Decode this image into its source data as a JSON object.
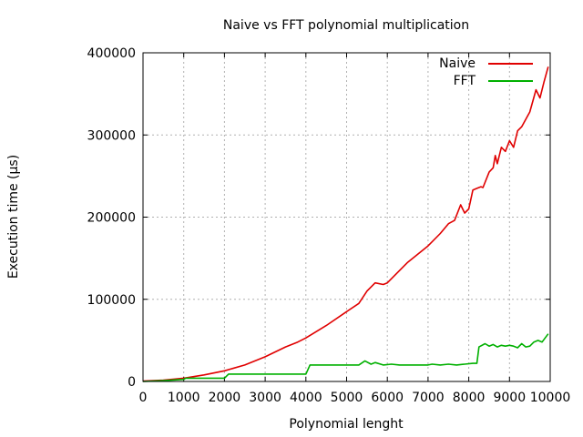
{
  "chart_data": {
    "type": "line",
    "title": "Naive vs FFT polynomial multiplication",
    "xlabel": "Polynomial lenght",
    "ylabel": "Execution time (µs)",
    "xlim": [
      0,
      10000
    ],
    "ylim": [
      0,
      400000
    ],
    "x_ticks": [
      0,
      1000,
      2000,
      3000,
      4000,
      5000,
      6000,
      7000,
      8000,
      9000,
      10000
    ],
    "x_tick_labels": [
      "0",
      "1000",
      "2000",
      "3000",
      "4000",
      "5000",
      "6000",
      "7000",
      "8000",
      "9000",
      "10000"
    ],
    "y_ticks": [
      0,
      100000,
      200000,
      300000,
      400000
    ],
    "y_tick_labels": [
      "0",
      "100000",
      "200000",
      "300000",
      "400000"
    ],
    "grid": true,
    "legend_position": "top-right",
    "series": [
      {
        "name": "Naive",
        "color": "#e00000",
        "x": [
          0,
          500,
          1000,
          1500,
          2000,
          2500,
          3000,
          3500,
          3800,
          4000,
          4500,
          5000,
          5300,
          5500,
          5700,
          5900,
          6000,
          6200,
          6500,
          7000,
          7300,
          7500,
          7650,
          7800,
          7900,
          8000,
          8100,
          8200,
          8300,
          8350,
          8500,
          8600,
          8650,
          8700,
          8800,
          8900,
          9000,
          9100,
          9200,
          9300,
          9500,
          9650,
          9750,
          9850,
          9950
        ],
        "y": [
          500,
          1500,
          4000,
          8000,
          13000,
          20000,
          30000,
          42000,
          48000,
          53000,
          68000,
          85000,
          95000,
          110000,
          120000,
          118000,
          120000,
          130000,
          145000,
          165000,
          180000,
          192000,
          196000,
          215000,
          205000,
          210000,
          233000,
          235000,
          237000,
          236000,
          255000,
          260000,
          275000,
          265000,
          285000,
          280000,
          293000,
          285000,
          305000,
          310000,
          328000,
          355000,
          345000,
          365000,
          383000
        ]
      },
      {
        "name": "FFT",
        "color": "#00b000",
        "x": [
          0,
          500,
          1000,
          1050,
          2000,
          2100,
          4000,
          4100,
          5300,
          5450,
          5600,
          5700,
          5900,
          6100,
          6300,
          7000,
          7100,
          7300,
          7500,
          7700,
          7900,
          8100,
          8200,
          8250,
          8400,
          8500,
          8600,
          8700,
          8800,
          8900,
          9000,
          9100,
          9200,
          9300,
          9400,
          9500,
          9600,
          9700,
          9800,
          9950
        ],
        "y": [
          0,
          1000,
          2500,
          4000,
          4000,
          9000,
          9000,
          20000,
          20000,
          25000,
          21000,
          23000,
          20000,
          21000,
          20000,
          20000,
          21000,
          20000,
          21000,
          20000,
          21000,
          22000,
          22000,
          42000,
          46000,
          43000,
          45000,
          42000,
          44000,
          43000,
          44000,
          43000,
          41000,
          46000,
          42000,
          43000,
          48000,
          50000,
          48000,
          58000
        ]
      }
    ]
  }
}
